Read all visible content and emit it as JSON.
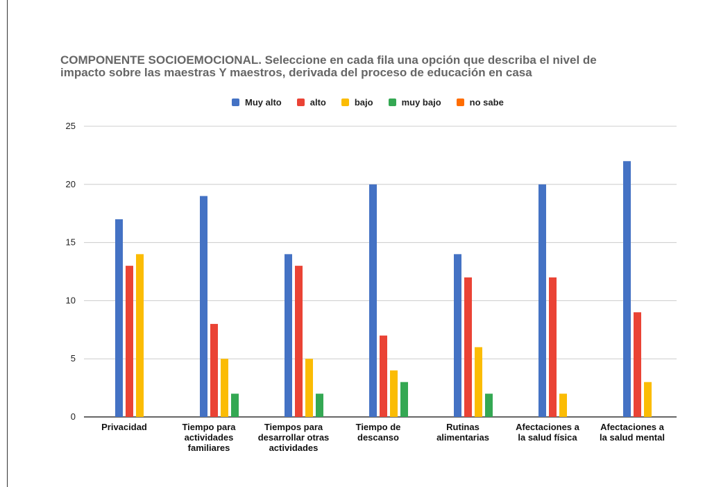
{
  "chart_data": {
    "type": "bar",
    "title": "COMPONENTE SOCIOEMOCIONAL. Seleccione en cada fila una opción que describa el nivel de impacto sobre las maestras Y maestros, derivada del proceso de educación en casa",
    "title_lines": [
      "COMPONENTE SOCIOEMOCIONAL. Seleccione en cada fila una opción que describa el nivel de",
      "impacto sobre las maestras Y maestros, derivada del proceso de educación en casa"
    ],
    "categories": [
      [
        "Privacidad"
      ],
      [
        "Tiempo para",
        "actividades",
        "familiares"
      ],
      [
        "Tiempos para",
        "desarrollar otras",
        "actividades"
      ],
      [
        "Tiempo de",
        "descanso"
      ],
      [
        "Rutinas",
        "alimentarias"
      ],
      [
        "Afectaciones a",
        "la salud física"
      ],
      [
        "Afectaciones a",
        "la salud mental"
      ]
    ],
    "series": [
      {
        "name": "Muy alto",
        "color": "#4472C4",
        "values": [
          17,
          19,
          14,
          20,
          14,
          20,
          22
        ]
      },
      {
        "name": "alto",
        "color": "#EA4335",
        "values": [
          13,
          8,
          13,
          7,
          12,
          12,
          9
        ]
      },
      {
        "name": "bajo",
        "color": "#FBBC04",
        "values": [
          14,
          5,
          5,
          4,
          6,
          2,
          3
        ]
      },
      {
        "name": "muy bajo",
        "color": "#34A853",
        "values": [
          0,
          2,
          2,
          3,
          2,
          0,
          0
        ]
      },
      {
        "name": "no sabe",
        "color": "#FF6D01",
        "values": [
          0,
          0,
          0,
          0,
          0,
          0,
          0
        ]
      }
    ],
    "ylim": [
      0,
      25
    ],
    "yticks": [
      0,
      5,
      10,
      15,
      20,
      25
    ],
    "grid": true,
    "legend_position": "top"
  }
}
